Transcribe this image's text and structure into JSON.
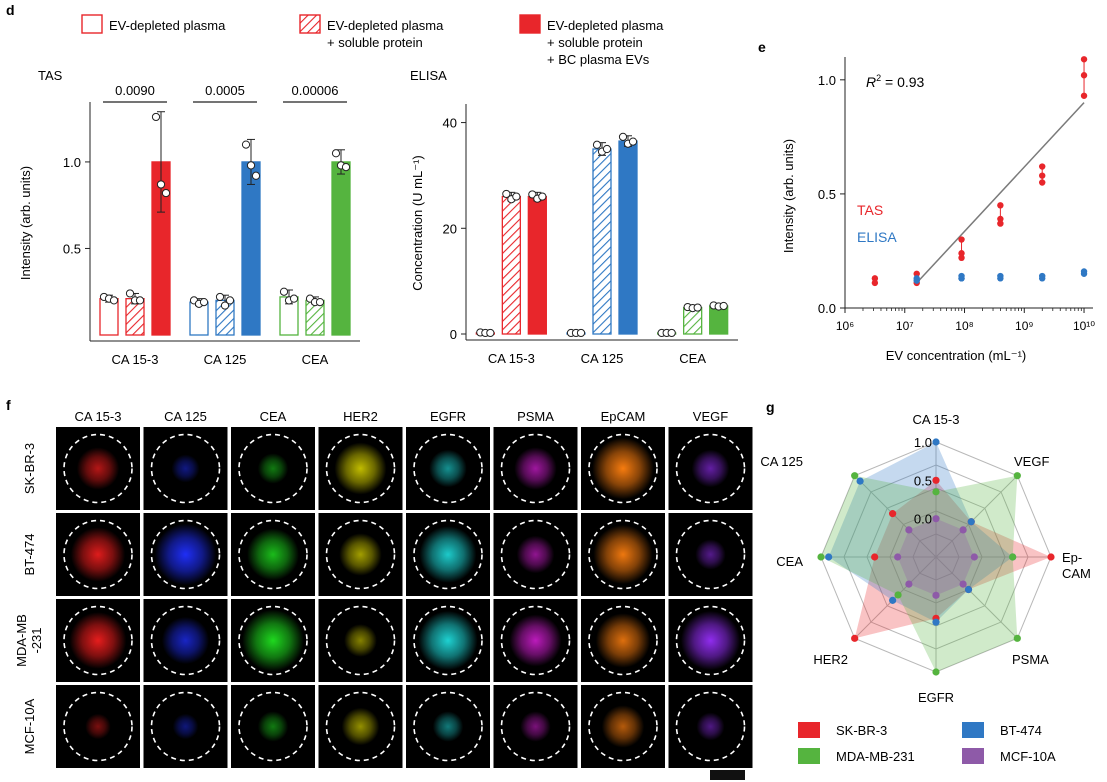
{
  "colors": {
    "red": "#e8262b",
    "blue": "#2f78c4",
    "green": "#55b43f",
    "purple": "#8e5aa8",
    "trend": "#7a7a7a",
    "text": "#1a1a1a"
  },
  "legend_top": [
    {
      "lines": [
        "EV-depleted plasma"
      ],
      "style": "open"
    },
    {
      "lines": [
        "EV-depleted plasma",
        "+ soluble protein"
      ],
      "style": "hatched"
    },
    {
      "lines": [
        "EV-depleted plasma",
        "+ soluble protein",
        "+ BC plasma EVs"
      ],
      "style": "solid"
    }
  ],
  "chart_data": [
    {
      "panel": "d",
      "title": "TAS",
      "type": "bar",
      "ylabel": "Intensity (arb. units)",
      "yticks": [
        {
          "v": 0.5,
          "label": "0.5"
        },
        {
          "v": 1.0,
          "label": "1.0"
        }
      ],
      "ylim": [
        0,
        1.3
      ],
      "groups": [
        {
          "name": "CA 15-3",
          "color": "red",
          "bars": [
            {
              "style": "open",
              "value": 0.21,
              "err": 0.02,
              "points": [
                0.22,
                0.21,
                0.2
              ]
            },
            {
              "style": "hatched",
              "value": 0.21,
              "err": 0.03,
              "points": [
                0.24,
                0.2,
                0.2
              ]
            },
            {
              "style": "solid",
              "value": 1.0,
              "err": 0.29,
              "points": [
                1.26,
                0.87,
                0.82
              ]
            }
          ],
          "p_value": "0.0090"
        },
        {
          "name": "CA 125",
          "color": "blue",
          "bars": [
            {
              "style": "open",
              "value": 0.19,
              "err": 0.02,
              "points": [
                0.2,
                0.18,
                0.19
              ]
            },
            {
              "style": "hatched",
              "value": 0.2,
              "err": 0.03,
              "points": [
                0.22,
                0.17,
                0.2
              ]
            },
            {
              "style": "solid",
              "value": 1.0,
              "err": 0.13,
              "points": [
                1.1,
                0.98,
                0.92
              ]
            }
          ],
          "p_value": "0.0005"
        },
        {
          "name": "CEA",
          "color": "green",
          "bars": [
            {
              "style": "open",
              "value": 0.22,
              "err": 0.04,
              "points": [
                0.25,
                0.2,
                0.21
              ]
            },
            {
              "style": "hatched",
              "value": 0.2,
              "err": 0.02,
              "points": [
                0.21,
                0.19,
                0.19
              ]
            },
            {
              "style": "solid",
              "value": 1.0,
              "err": 0.07,
              "points": [
                1.05,
                0.98,
                0.97
              ]
            }
          ],
          "p_value": "0.00006"
        }
      ]
    },
    {
      "panel": "",
      "title": "ELISA",
      "type": "bar",
      "ylabel": "Concentration (U mL⁻¹)",
      "yticks": [
        {
          "v": 0,
          "label": "0"
        },
        {
          "v": 20,
          "label": "20"
        },
        {
          "v": 40,
          "label": "40"
        }
      ],
      "ylim": [
        0,
        42
      ],
      "groups": [
        {
          "name": "CA 15-3",
          "color": "red",
          "bars": [
            {
              "style": "open",
              "value": 0.2,
              "err": 0,
              "points": [
                0.3,
                0.2,
                0.2
              ]
            },
            {
              "style": "hatched",
              "value": 26,
              "err": 0.8,
              "points": [
                26.5,
                25.5,
                26
              ]
            },
            {
              "style": "solid",
              "value": 26,
              "err": 0.8,
              "points": [
                26.4,
                25.6,
                26
              ]
            }
          ]
        },
        {
          "name": "CA 125",
          "color": "blue",
          "bars": [
            {
              "style": "open",
              "value": 0.2,
              "err": 0,
              "points": [
                0.2,
                0.2,
                0.2
              ]
            },
            {
              "style": "hatched",
              "value": 35,
              "err": 1.2,
              "points": [
                35.8,
                34.5,
                35
              ]
            },
            {
              "style": "solid",
              "value": 36.5,
              "err": 1.0,
              "points": [
                37.3,
                36,
                36.4
              ]
            }
          ]
        },
        {
          "name": "CEA",
          "color": "green",
          "bars": [
            {
              "style": "open",
              "value": 0.2,
              "err": 0,
              "points": [
                0.2,
                0.2,
                0.2
              ]
            },
            {
              "style": "hatched",
              "value": 5,
              "err": 0.3,
              "points": [
                5.1,
                4.9,
                5
              ]
            },
            {
              "style": "solid",
              "value": 5.3,
              "err": 0.3,
              "points": [
                5.4,
                5.2,
                5.3
              ]
            }
          ]
        }
      ]
    },
    {
      "panel": "e",
      "type": "scatter",
      "xlabel": "EV concentration (mL⁻¹)",
      "ylabel": "Intensity (arb. units)",
      "x_log_ticks": [
        {
          "v": 6,
          "label": "10⁶"
        },
        {
          "v": 7,
          "label": "10⁷"
        },
        {
          "v": 8,
          "label": "10⁸"
        },
        {
          "v": 9,
          "label": "10⁹"
        },
        {
          "v": 10,
          "label": "10¹⁰"
        }
      ],
      "yticks": [
        {
          "v": 0,
          "label": "0.0"
        },
        {
          "v": 0.5,
          "label": "0.5"
        },
        {
          "v": 1.0,
          "label": "1.0"
        }
      ],
      "xlim_log": [
        6,
        10.15
      ],
      "ylim": [
        0,
        1.1
      ],
      "r2_label": "R",
      "r2_sup": "2",
      "r2_value": " = 0.93",
      "series": [
        {
          "name": "TAS",
          "color": "red",
          "points": [
            {
              "logx": 6.5,
              "y": [
                0.13,
                0.11
              ]
            },
            {
              "logx": 7.2,
              "y": [
                0.15,
                0.11
              ]
            },
            {
              "logx": 7.95,
              "y": [
                0.3,
                0.22,
                0.24
              ]
            },
            {
              "logx": 8.6,
              "y": [
                0.45,
                0.37,
                0.39
              ]
            },
            {
              "logx": 9.3,
              "y": [
                0.62,
                0.55,
                0.58
              ]
            },
            {
              "logx": 10.0,
              "y": [
                1.09,
                1.02,
                0.93
              ]
            }
          ]
        },
        {
          "name": "ELISA",
          "color": "blue",
          "points": [
            {
              "logx": 7.2,
              "y": [
                0.13,
                0.12
              ]
            },
            {
              "logx": 7.95,
              "y": [
                0.14,
                0.13,
                0.13
              ]
            },
            {
              "logx": 8.6,
              "y": [
                0.14,
                0.13
              ]
            },
            {
              "logx": 9.3,
              "y": [
                0.14,
                0.13
              ]
            },
            {
              "logx": 10.0,
              "y": [
                0.16,
                0.15
              ]
            }
          ]
        }
      ],
      "fit": [
        {
          "logx": 7.2,
          "y": 0.11
        },
        {
          "logx": 10.0,
          "y": 0.9
        }
      ]
    },
    {
      "panel": "g",
      "type": "radar",
      "axes": [
        {
          "label": [
            "CA 15-3"
          ],
          "anchor": "middle"
        },
        {
          "label": [
            "VEGF"
          ],
          "anchor": "start"
        },
        {
          "label": [
            "Ep-",
            "CAM"
          ],
          "anchor": "start"
        },
        {
          "label": [
            "PSMA"
          ],
          "anchor": "start"
        },
        {
          "label": [
            "EGFR"
          ],
          "anchor": "middle"
        },
        {
          "label": [
            "HER2"
          ],
          "anchor": "end"
        },
        {
          "label": [
            "CEA"
          ],
          "anchor": "end"
        },
        {
          "label": [
            "CA 125"
          ],
          "anchor": "end"
        }
      ],
      "rticks": [
        {
          "v": 0.0,
          "label": "0.0"
        },
        {
          "v": 0.5,
          "label": "0.5"
        },
        {
          "v": 1.0,
          "label": "1.0"
        }
      ],
      "rmin": -0.5,
      "rmax": 1.0,
      "series": [
        {
          "name": "SK-BR-3",
          "color": "red",
          "values": [
            0.5,
            0.15,
            1.0,
            0.1,
            0.3,
            1.0,
            0.3,
            0.3
          ]
        },
        {
          "name": "BT-474",
          "color": "blue",
          "values": [
            1.0,
            0.15,
            0.5,
            0.1,
            0.35,
            0.3,
            0.9,
            0.9
          ]
        },
        {
          "name": "MDA-MB-231",
          "color": "green",
          "values": [
            0.35,
            1.0,
            0.5,
            1.0,
            1.0,
            0.2,
            1.0,
            1.0
          ]
        },
        {
          "name": "MCF-10A",
          "color": "purple",
          "values": [
            0.0,
            0.0,
            0.0,
            0.0,
            0.0,
            0.0,
            0.0,
            0.0
          ]
        }
      ]
    }
  ],
  "micrographs": {
    "panel": "f",
    "columns": [
      "CA 15-3",
      "CA 125",
      "CEA",
      "HER2",
      "EGFR",
      "PSMA",
      "EpCAM",
      "VEGF"
    ],
    "column_colors": [
      "#ff2020",
      "#2030ff",
      "#20e020",
      "#e6e000",
      "#20e0e0",
      "#e020e0",
      "#ff8010",
      "#9a30ff"
    ],
    "rows": [
      {
        "label": [
          "SK-BR-3"
        ],
        "intensity": [
          0.55,
          0.25,
          0.3,
          0.75,
          0.45,
          0.55,
          0.95,
          0.45
        ]
      },
      {
        "label": [
          "BT-474"
        ],
        "intensity": [
          0.8,
          0.95,
          0.75,
          0.55,
          0.85,
          0.45,
          0.9,
          0.3
        ]
      },
      {
        "label": [
          "MDA-MB",
          "-231"
        ],
        "intensity": [
          0.85,
          0.65,
          0.95,
          0.35,
          0.9,
          0.75,
          0.8,
          0.9
        ]
      },
      {
        "label": [
          "MCF-10A"
        ],
        "intensity": [
          0.2,
          0.2,
          0.3,
          0.45,
          0.3,
          0.3,
          0.55,
          0.25
        ]
      }
    ]
  },
  "panel_labels": {
    "d": "d",
    "e": "e",
    "f": "f",
    "g": "g"
  }
}
